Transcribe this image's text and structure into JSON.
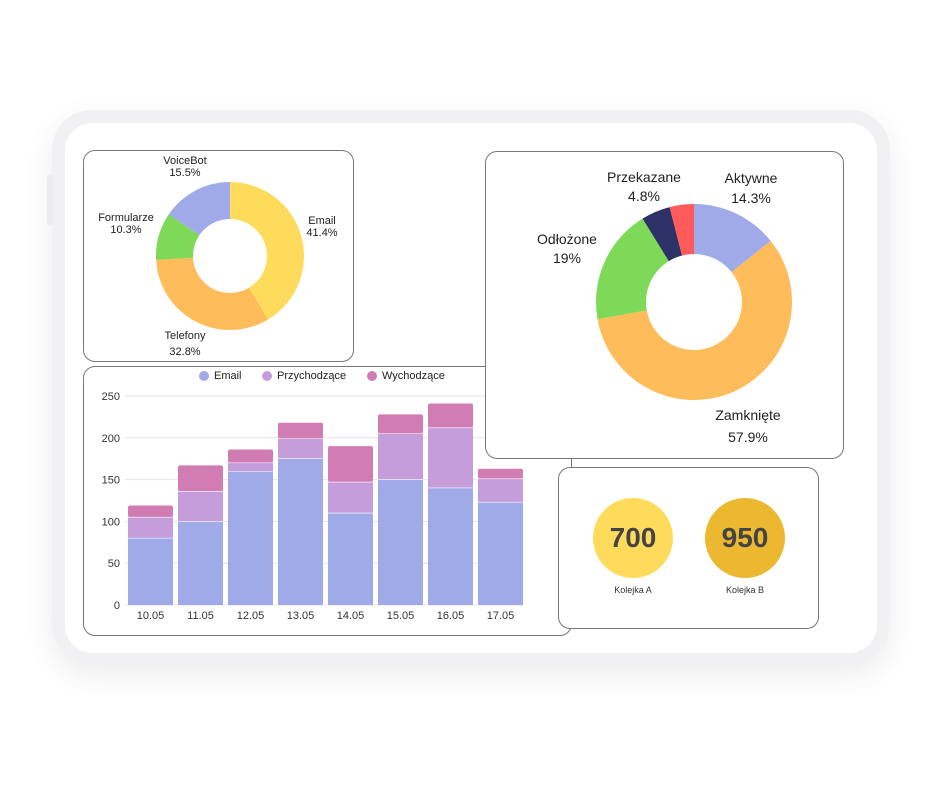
{
  "colors": {
    "email_bar": "#A0AAE8",
    "incoming": "#C59DDB",
    "outgoing": "#D17DB4",
    "yellow": "#FFDB5C",
    "orange": "#FFBC5A",
    "green": "#7DD957",
    "blue": "#A0AAE8",
    "navy": "#2E3166",
    "red": "#FF5B5B",
    "queue_a": "#FFDB5C",
    "queue_b": "#EBB830"
  },
  "chart_data": [
    {
      "type": "pie",
      "donut": true,
      "slices": [
        {
          "label": "Email",
          "value": 41.4,
          "display": "41.4%",
          "color": "#FFDB5C"
        },
        {
          "label": "Telefony",
          "value": 32.8,
          "display": "32.8%",
          "color": "#FFBC5A"
        },
        {
          "label": "Formularze",
          "value": 10.3,
          "display": "10.3%",
          "color": "#7DD957"
        },
        {
          "label": "VoiceBot",
          "value": 15.5,
          "display": "15.5%",
          "color": "#A0AAE8"
        }
      ]
    },
    {
      "type": "pie",
      "donut": true,
      "slices": [
        {
          "label": "Aktywne",
          "value": 14.3,
          "display": "14.3%",
          "color": "#A0AAE8"
        },
        {
          "label": "Zamknięte",
          "value": 57.9,
          "display": "57.9%",
          "color": "#FFBC5A"
        },
        {
          "label": "Odłożone",
          "value": 19,
          "display": "19%",
          "color": "#7DD957"
        },
        {
          "label": "Przekazane",
          "value": 4.8,
          "display": "4.8%",
          "color": "#2E3166"
        },
        {
          "label": "",
          "value": 4.0,
          "display": "",
          "color": "#FF5B5B"
        }
      ]
    },
    {
      "type": "bar",
      "stacked": true,
      "categories": [
        "10.05",
        "11.05",
        "12.05",
        "13.05",
        "14.05",
        "15.05",
        "16.05",
        "17.05"
      ],
      "series": [
        {
          "name": "Email",
          "values": [
            80,
            100,
            160,
            175,
            110,
            150,
            140,
            123
          ],
          "color": "#A0AAE8"
        },
        {
          "name": "Przychodzące",
          "values": [
            25,
            36,
            10,
            24,
            37,
            55,
            72,
            28
          ],
          "color": "#C59DDB"
        },
        {
          "name": "Wychodzące",
          "values": [
            14,
            31,
            16,
            19,
            43,
            23,
            29,
            12
          ],
          "color": "#D17DB4"
        }
      ],
      "ylim": [
        0,
        250
      ],
      "yticks": [
        "0",
        "50",
        "100",
        "150",
        "200",
        "250"
      ],
      "grid": true,
      "legend": "top"
    }
  ],
  "queues": [
    {
      "value": "700",
      "label": "Kolejka A"
    },
    {
      "value": "950",
      "label": "Kolejka B"
    }
  ]
}
